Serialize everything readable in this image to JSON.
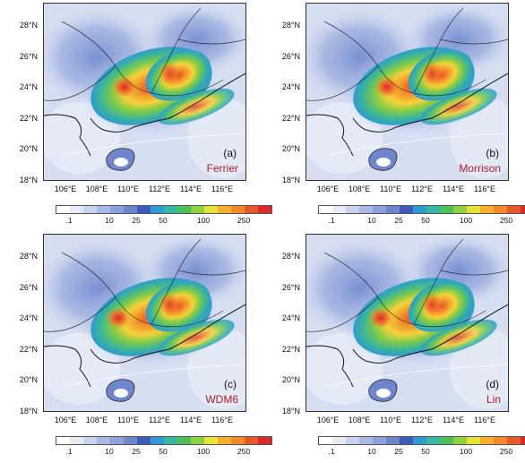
{
  "y_ticks": [
    "28°N",
    "26°N",
    "24°N",
    "22°N",
    "20°N",
    "18°N"
  ],
  "x_ticks": [
    "106°E",
    "108°E",
    "110°E",
    "112°E",
    "114°E",
    "116°E"
  ],
  "colorbar": {
    "colors": [
      "#ffffff",
      "#e7ebf6",
      "#c9d3ee",
      "#a9b9e4",
      "#8ca1da",
      "#6f86cd",
      "#3d5bb9",
      "#2f9bd0",
      "#38b6a5",
      "#4fbf5a",
      "#8fd043",
      "#e5e23a",
      "#f6b02d",
      "#f08a2b",
      "#e8572a",
      "#d92b2b"
    ],
    "labels": [
      ".1",
      "10",
      "25",
      "50",
      "100",
      "250"
    ]
  },
  "panels": [
    {
      "tag": "(a)",
      "scheme": "Ferrier"
    },
    {
      "tag": "(b)",
      "scheme": "Morrison"
    },
    {
      "tag": "(c)",
      "scheme": "WDM6"
    },
    {
      "tag": "(d)",
      "scheme": "Lin"
    }
  ]
}
